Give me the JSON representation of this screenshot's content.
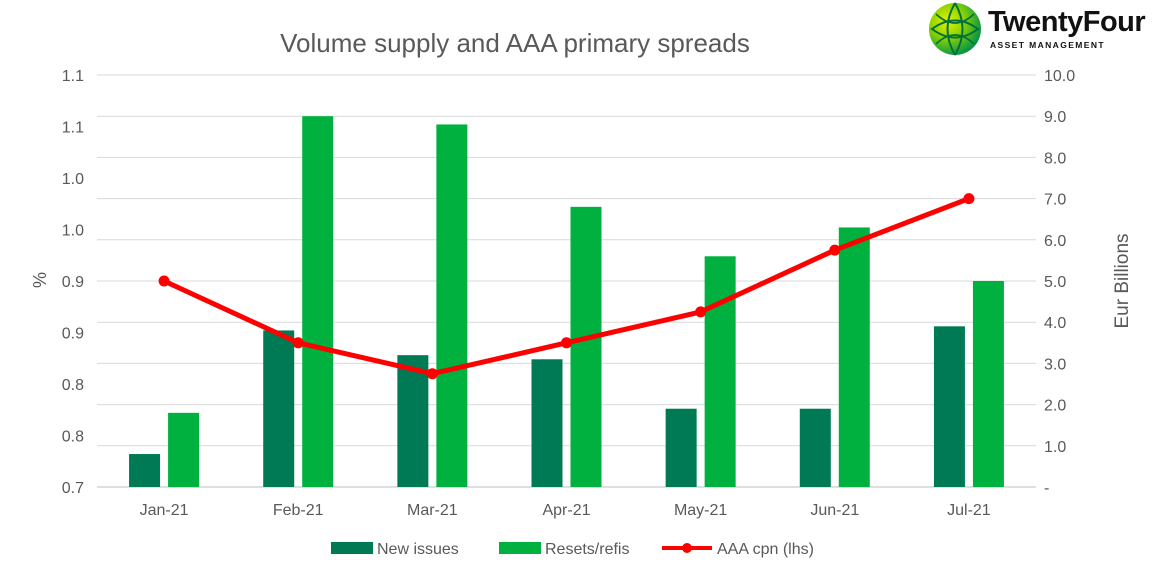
{
  "logo": {
    "name": "TwentyFour",
    "subtitle": "ASSET MANAGEMENT"
  },
  "chart_data": {
    "type": "bar+line",
    "title": "Volume supply and AAA primary spreads",
    "categories": [
      "Jan-21",
      "Feb-21",
      "Mar-21",
      "Apr-21",
      "May-21",
      "Jun-21",
      "Jul-21"
    ],
    "series": [
      {
        "name": "New issues",
        "type": "bar",
        "axis": "right",
        "color": "#007A55",
        "values": [
          0.8,
          3.8,
          3.2,
          3.1,
          1.9,
          1.9,
          3.9
        ]
      },
      {
        "name": "Resets/refis",
        "type": "bar",
        "axis": "right",
        "color": "#00B140",
        "values": [
          1.8,
          9.0,
          8.8,
          6.8,
          5.6,
          6.3,
          5.0
        ]
      },
      {
        "name": "AAA cpn (lhs)",
        "type": "line",
        "axis": "left",
        "color": "#FF0000",
        "values": [
          0.9,
          0.84,
          0.81,
          0.84,
          0.87,
          0.93,
          0.98
        ]
      }
    ],
    "left_axis": {
      "label": "%",
      "min": 0.7,
      "max": 1.1,
      "ticks": [
        "1.1",
        "1.1",
        "1.0",
        "1.0",
        "0.9",
        "0.9",
        "0.8",
        "0.8",
        "0.7"
      ]
    },
    "right_axis": {
      "label": "Eur Billions",
      "min": 0,
      "max": 10,
      "ticks": [
        "10.0",
        "9.0",
        "8.0",
        "7.0",
        "6.0",
        "5.0",
        "4.0",
        "3.0",
        "2.0",
        "1.0",
        "-"
      ]
    },
    "grid": true,
    "legend_position": "bottom"
  }
}
